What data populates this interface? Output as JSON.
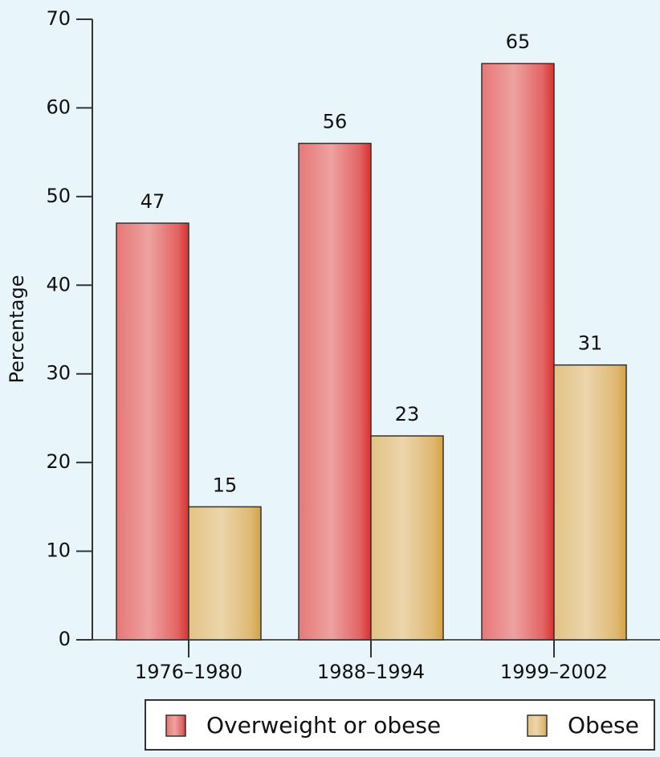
{
  "chart_data": {
    "type": "bar",
    "y_label": "Percentage",
    "categories": [
      "1976–1980",
      "1988–1994",
      "1999–2002"
    ],
    "series": [
      {
        "name": "Overweight or obese",
        "color": "#d8302e",
        "values": [
          47,
          56,
          65
        ]
      },
      {
        "name": "Obese",
        "color": "#d4a244",
        "values": [
          15,
          23,
          31
        ]
      }
    ],
    "ylim": [
      0,
      70
    ],
    "yticks": [
      0,
      10,
      20,
      30,
      40,
      50,
      60,
      70
    ],
    "grid": false
  }
}
